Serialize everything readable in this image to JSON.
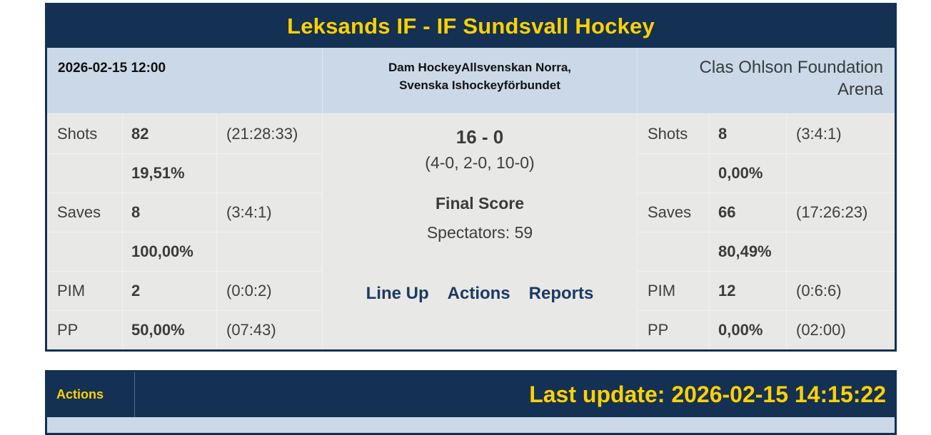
{
  "match": {
    "title": "Leksands IF - IF Sundsvall Hockey",
    "datetime": "2026-02-15 12:00",
    "league_line1": "Dam HockeyAllsvenskan Norra,",
    "league_line2": "Svenska Ishockeyförbundet",
    "venue": "Clas Ohlson Foundation Arena"
  },
  "center": {
    "score": "16 - 0",
    "periods": "(4-0, 2-0, 10-0)",
    "status": "Final Score",
    "spectators": "Spectators: 59",
    "links": [
      {
        "label": "Line Up"
      },
      {
        "label": "Actions"
      },
      {
        "label": "Reports"
      }
    ]
  },
  "home": {
    "rows": [
      {
        "label": "Shots",
        "value": "82",
        "time": "(21:28:33)"
      },
      {
        "label": "",
        "value": "19,51%",
        "time": ""
      },
      {
        "label": "Saves",
        "value": "8",
        "time": "(3:4:1)"
      },
      {
        "label": "",
        "value": "100,00%",
        "time": ""
      },
      {
        "label": "PIM",
        "value": "2",
        "time": "(0:0:2)"
      },
      {
        "label": "PP",
        "value": "50,00%",
        "time": "(07:43)"
      }
    ]
  },
  "away": {
    "rows": [
      {
        "label": "Shots",
        "value": "8",
        "time": "(3:4:1)"
      },
      {
        "label": "",
        "value": "0,00%",
        "time": ""
      },
      {
        "label": "Saves",
        "value": "66",
        "time": "(17:26:23)"
      },
      {
        "label": "",
        "value": "80,49%",
        "time": ""
      },
      {
        "label": "PIM",
        "value": "12",
        "time": "(0:6:6)"
      },
      {
        "label": "PP",
        "value": "0,00%",
        "time": "(02:00)"
      }
    ]
  },
  "footer": {
    "tab": "Actions",
    "last_update": "Last update: 2026-02-15 14:15:22"
  },
  "colors": {
    "navy": "#143052",
    "yellow": "#fdd103",
    "light_blue": "#cbd8e8",
    "light_gray": "#e8e8e6",
    "link_navy": "#1b3a63",
    "text_gray": "#3e3e3e"
  }
}
